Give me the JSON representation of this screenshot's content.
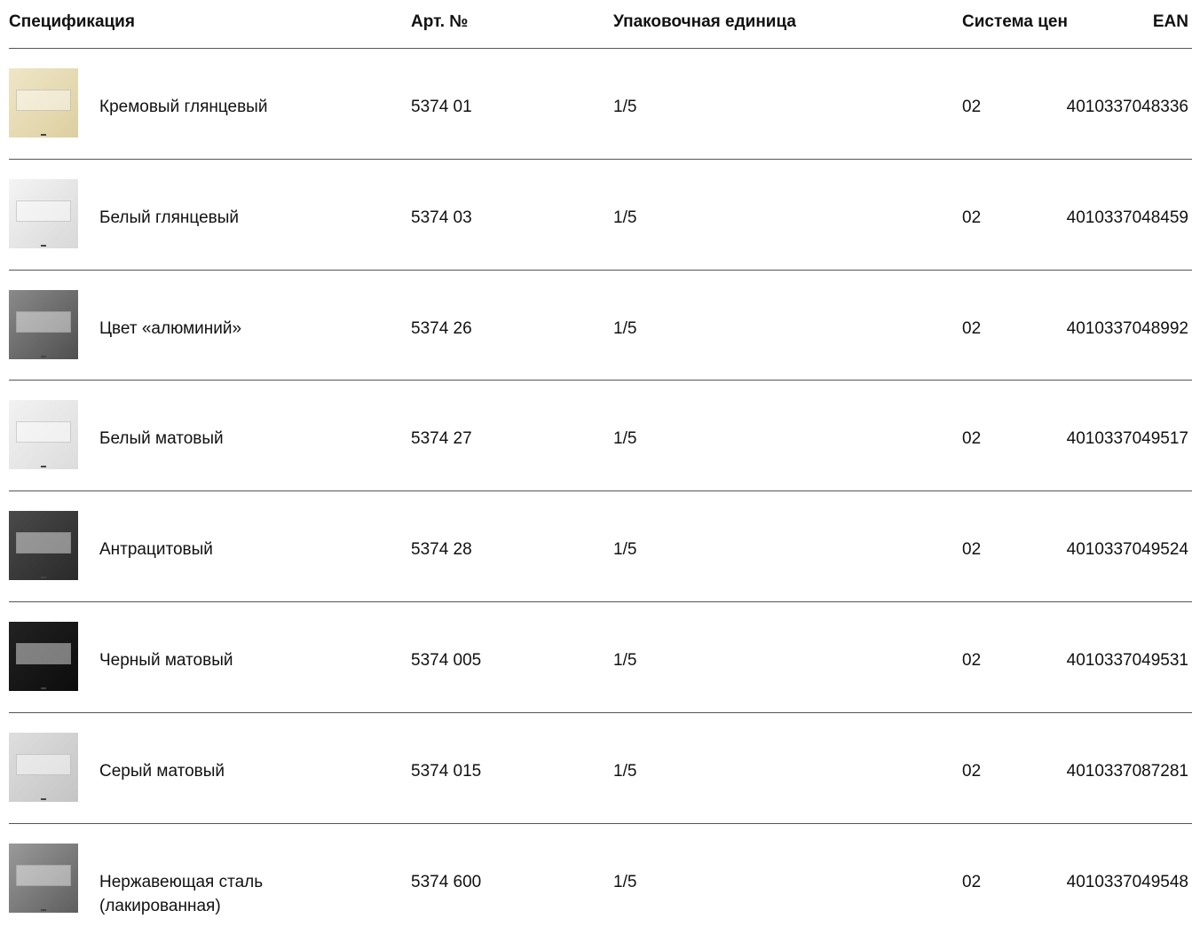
{
  "table": {
    "header": [
      "Спецификация",
      "Арт. №",
      "Упаковочная единица",
      "Система цен",
      "EAN"
    ],
    "rows": [
      [
        "Кремовый глянцевый",
        "5374 01",
        "1/5",
        "02",
        "4010337048336"
      ],
      [
        "Белый глянцевый",
        "5374 03",
        "1/5",
        "02",
        "4010337048459"
      ],
      [
        "Цвет «алюминий»",
        "5374 26",
        "1/5",
        "02",
        "4010337048992"
      ],
      [
        "Белый матовый",
        "5374 27",
        "1/5",
        "02",
        "4010337049517"
      ],
      [
        "Антрацитовый",
        "5374 28",
        "1/5",
        "02",
        "4010337049524"
      ],
      [
        "Черный матовый",
        "5374 005",
        "1/5",
        "02",
        "4010337049531"
      ],
      [
        "Серый матовый",
        "5374 015",
        "1/5",
        "02",
        "4010337087281"
      ],
      [
        "Нержавеющая сталь\n(лакированная)",
        "5374 600",
        "1/5",
        "02",
        "4010337049548"
      ]
    ]
  }
}
